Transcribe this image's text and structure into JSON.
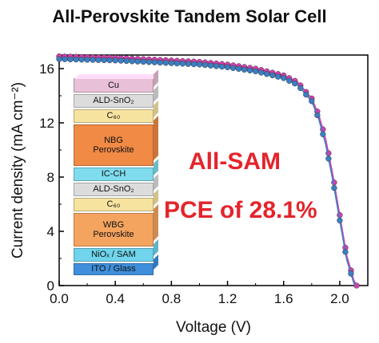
{
  "chart_data": {
    "type": "line",
    "title": "All-Perovskite Tandem Solar Cell",
    "xlabel": "Voltage (V)",
    "ylabel": "Current density (mA cm⁻²)",
    "xlim": [
      0,
      2.2
    ],
    "ylim": [
      0,
      17
    ],
    "xticks": [
      "0.0",
      "0.4",
      "0.8",
      "1.2",
      "1.6",
      "2.0"
    ],
    "yticks": [
      "0",
      "4",
      "8",
      "12",
      "16"
    ],
    "series": [
      {
        "color": "#d63fb0",
        "x": [
          0.0,
          0.2,
          0.4,
          0.6,
          0.8,
          1.0,
          1.2,
          1.4,
          1.6,
          1.7,
          1.8,
          1.85,
          1.9,
          1.95,
          2.0,
          2.05,
          2.1,
          2.12
        ],
        "y": [
          16.9,
          16.85,
          16.8,
          16.7,
          16.6,
          16.5,
          16.3,
          16.0,
          15.5,
          15.0,
          13.8,
          12.6,
          10.8,
          8.2,
          5.2,
          2.2,
          0.4,
          0.0
        ]
      },
      {
        "color": "#3b7fc4",
        "x": [
          0.0,
          0.2,
          0.4,
          0.6,
          0.8,
          1.0,
          1.2,
          1.4,
          1.6,
          1.7,
          1.8,
          1.85,
          1.9,
          1.95,
          2.0,
          2.05,
          2.1,
          2.11
        ],
        "y": [
          16.7,
          16.65,
          16.6,
          16.5,
          16.4,
          16.3,
          16.1,
          15.8,
          15.3,
          14.8,
          13.6,
          12.3,
          10.4,
          7.8,
          4.8,
          1.9,
          0.2,
          0.0
        ]
      }
    ],
    "grid": false
  },
  "annotations": {
    "line1": "All-SAM",
    "line2": "PCE of 28.1%"
  },
  "device_stack": [
    {
      "label": "Cu",
      "color": "#e8c0d8"
    },
    {
      "label": "ALD-SnO₂",
      "color": "#dcdcdc"
    },
    {
      "label": "C₆₀",
      "color": "#f7e3a0"
    },
    {
      "label": "NBG\nPerovskite",
      "color": "#f08a45"
    },
    {
      "label": "IC-CH",
      "color": "#7fdcee"
    },
    {
      "label": "ALD-SnO₂",
      "color": "#dcdcdc"
    },
    {
      "label": "C₆₀",
      "color": "#f7e3a0"
    },
    {
      "label": "WBG\nPerovskite",
      "color": "#f5a460"
    },
    {
      "label": "NiOₓ / SAM",
      "color": "#6fd4ec"
    },
    {
      "label": "ITO / Glass",
      "color": "#3f8fdc"
    }
  ]
}
